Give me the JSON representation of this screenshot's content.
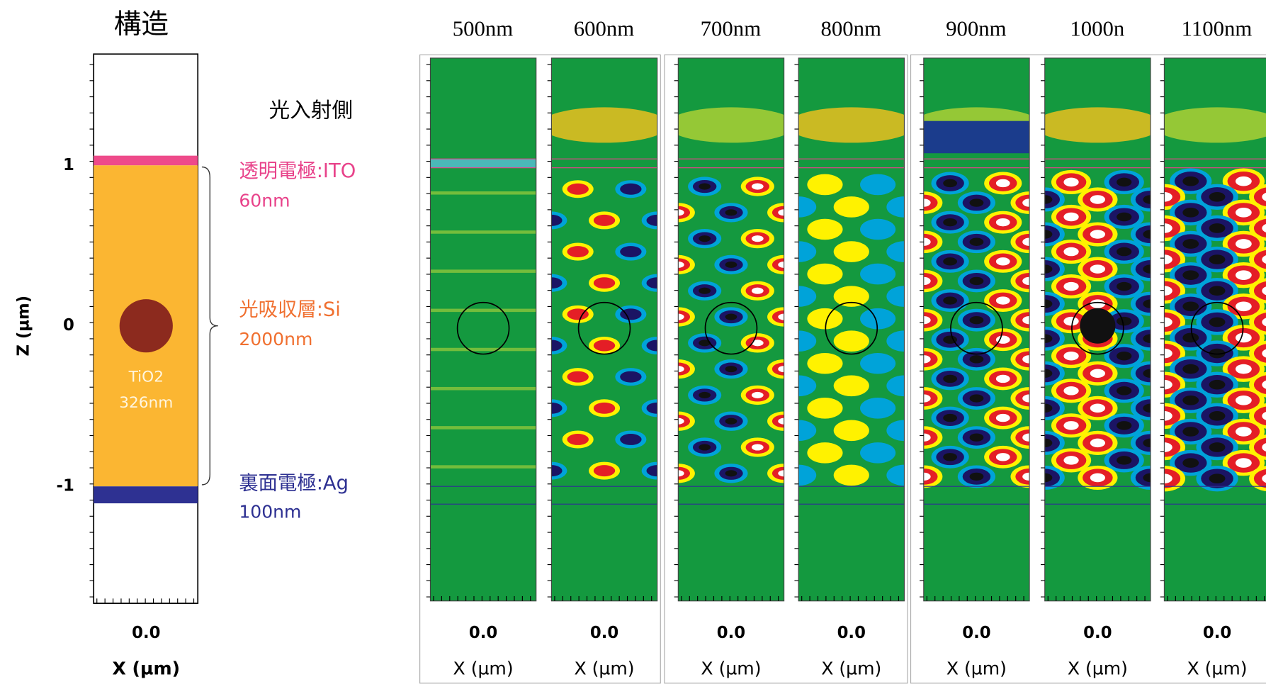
{
  "structure": {
    "title": "構造",
    "light_side": "光入射側",
    "y_axis_label": "Z (µm)",
    "y_ticks": [
      "1",
      "0",
      "-1"
    ],
    "x_tick": "0.0",
    "x_axis_label": "X (µm)",
    "particle": [
      "TiO2",
      "326nm"
    ],
    "layers": [
      {
        "name": "透明電極:ITO",
        "thickness": "60nm"
      },
      {
        "name": "光吸収層:Si",
        "thickness": "2000nm"
      },
      {
        "name": "裏面電極:Ag",
        "thickness": "100nm"
      }
    ]
  },
  "panels": [
    {
      "wavelength": "500nm",
      "x_tick": "0.0",
      "x_axis_label": "X (µm)"
    },
    {
      "wavelength": "600nm",
      "x_tick": "0.0",
      "x_axis_label": "X (µm)"
    },
    {
      "wavelength": "700nm",
      "x_tick": "0.0",
      "x_axis_label": "X (µm)"
    },
    {
      "wavelength": "800nm",
      "x_tick": "0.0",
      "x_axis_label": "X (µm)"
    },
    {
      "wavelength": "900nm",
      "x_tick": "0.0",
      "x_axis_label": "X (µm)"
    },
    {
      "wavelength": "1000n",
      "x_tick": "0.0",
      "x_axis_label": "X (µm)"
    },
    {
      "wavelength": "1100nm",
      "x_tick": "0.0",
      "x_axis_label": "X (µm)"
    }
  ]
}
